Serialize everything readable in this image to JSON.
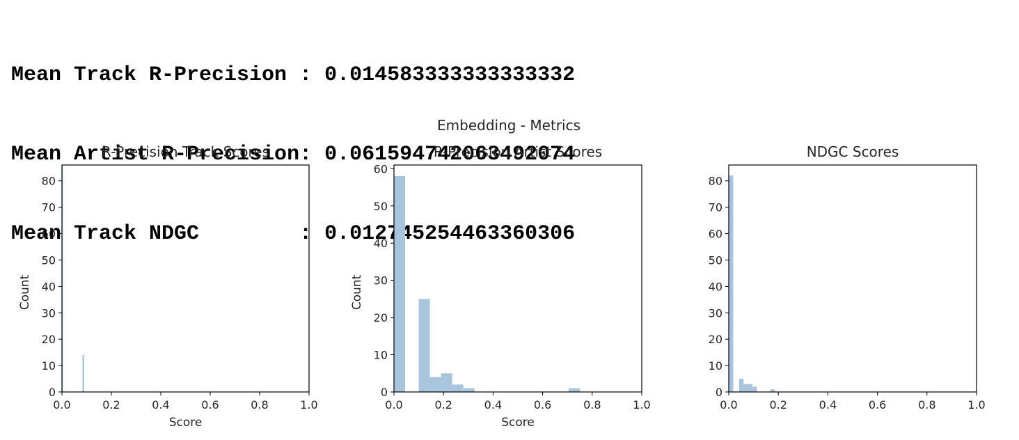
{
  "output": {
    "lines": [
      {
        "label": "Mean Track R-Precision ",
        "value": "0.014583333333333332"
      },
      {
        "label": "Mean Artist R-Precision",
        "value": "0.06159474206349207​4"
      },
      {
        "label": "Mean Track NDGC        ",
        "value": "0.012745254463360306"
      }
    ]
  },
  "colors": {
    "bar": "#a9c4dd",
    "axis": "#000000",
    "text": "#262626"
  },
  "chart_data": {
    "suptitle": "Embedding - Metrics",
    "charts": [
      {
        "type": "bar",
        "title": "R-Precision Track Scores",
        "xlabel": "Score",
        "ylabel": "Count",
        "xlim": [
          0,
          1
        ],
        "ylim": [
          0,
          86
        ],
        "xticks": [
          "0.0",
          "0.2",
          "0.4",
          "0.6",
          "0.8",
          "1.0"
        ],
        "yticks": [
          0,
          10,
          20,
          30,
          40,
          50,
          60,
          70,
          80
        ],
        "bins": [
          {
            "x0": 0.0,
            "x1": 0.004,
            "count": 86
          },
          {
            "x0": 0.083,
            "x1": 0.09,
            "count": 14
          }
        ]
      },
      {
        "type": "bar",
        "title": "R-Precision Artist Scores",
        "xlabel": "Score",
        "ylabel": "Count",
        "xlim": [
          0,
          1
        ],
        "ylim": [
          0,
          61
        ],
        "xticks": [
          "0.0",
          "0.2",
          "0.4",
          "0.6",
          "0.8",
          "1.0"
        ],
        "yticks": [
          0,
          10,
          20,
          30,
          40,
          50,
          60
        ],
        "bins": [
          {
            "x0": 0.0,
            "x1": 0.045,
            "count": 58
          },
          {
            "x0": 0.1,
            "x1": 0.145,
            "count": 25
          },
          {
            "x0": 0.145,
            "x1": 0.19,
            "count": 4
          },
          {
            "x0": 0.19,
            "x1": 0.235,
            "count": 5
          },
          {
            "x0": 0.235,
            "x1": 0.28,
            "count": 2
          },
          {
            "x0": 0.28,
            "x1": 0.325,
            "count": 1
          },
          {
            "x0": 0.705,
            "x1": 0.75,
            "count": 1
          }
        ]
      },
      {
        "type": "bar",
        "title": "NDGC Scores",
        "xlabel": "",
        "ylabel": "",
        "xlim": [
          0,
          1
        ],
        "ylim": [
          0,
          86
        ],
        "xticks": [
          "0.0",
          "0.2",
          "0.4",
          "0.6",
          "0.8",
          "1.0"
        ],
        "yticks": [
          0,
          10,
          20,
          30,
          40,
          50,
          60,
          70,
          80
        ],
        "bins": [
          {
            "x0": 0.0,
            "x1": 0.018,
            "count": 82
          },
          {
            "x0": 0.042,
            "x1": 0.06,
            "count": 5
          },
          {
            "x0": 0.06,
            "x1": 0.078,
            "count": 3
          },
          {
            "x0": 0.078,
            "x1": 0.096,
            "count": 3
          },
          {
            "x0": 0.096,
            "x1": 0.114,
            "count": 2
          },
          {
            "x0": 0.168,
            "x1": 0.186,
            "count": 1
          }
        ]
      }
    ]
  }
}
